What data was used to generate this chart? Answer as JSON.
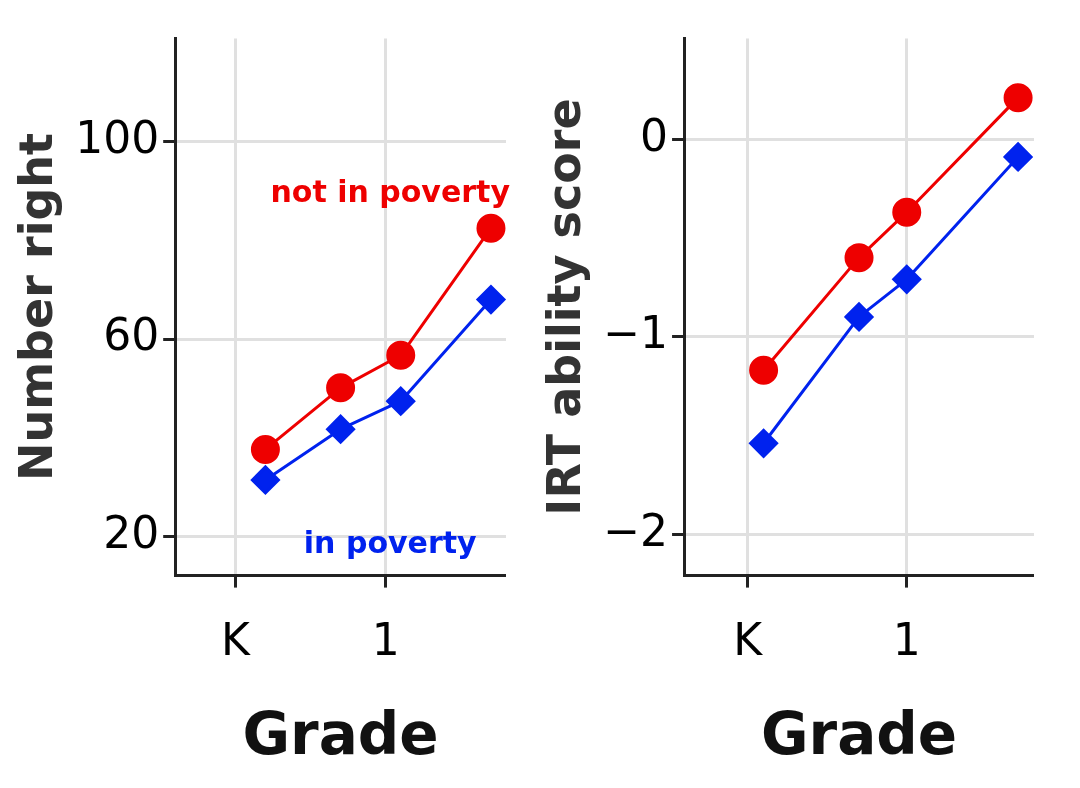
{
  "chart_data": [
    {
      "type": "line",
      "xlabel": "Grade",
      "ylabel": "Number right",
      "categories": [
        null,
        null,
        null,
        null,
        "K",
        null,
        null,
        null,
        null,
        null,
        null,
        null,
        null,
        null,
        "1",
        null,
        null,
        null,
        null,
        null,
        null,
        null,
        null
      ],
      "ylim": [
        12,
        121
      ],
      "yticks": [
        20,
        60,
        100
      ],
      "grid": true,
      "legend": false,
      "series": [
        {
          "name": "not in poverty",
          "color": "#ee0000",
          "marker": "circle",
          "values": [
            null,
            null,
            null,
            null,
            null,
            null,
            37.6,
            null,
            null,
            null,
            null,
            50.1,
            null,
            null,
            null,
            56.7,
            null,
            null,
            null,
            null,
            null,
            82.5,
            null
          ]
        },
        {
          "name": "in poverty",
          "color": "#0022ee",
          "marker": "diamond",
          "values": [
            null,
            null,
            null,
            null,
            null,
            null,
            31.4,
            null,
            null,
            null,
            null,
            41.7,
            null,
            null,
            null,
            47.4,
            null,
            null,
            null,
            null,
            null,
            68,
            null
          ]
        }
      ]
    },
    {
      "type": "line",
      "xlabel": "Grade",
      "ylabel": "IRT ability score",
      "categories": [
        null,
        null,
        null,
        null,
        "K",
        null,
        null,
        null,
        null,
        null,
        null,
        null,
        null,
        null,
        "1",
        null,
        null,
        null,
        null,
        null,
        null,
        null,
        null
      ],
      "ylim": [
        -2.21,
        0.51
      ],
      "yticks": [
        {
          "value": -2,
          "label": "−2"
        },
        {
          "value": -1,
          "label": "−1"
        },
        0
      ],
      "grid": true,
      "legend": false,
      "series": [
        {
          "color": "#ee0000",
          "marker": "circle",
          "values": [
            null,
            null,
            null,
            null,
            null,
            -1.17,
            null,
            null,
            null,
            null,
            null,
            -0.6,
            null,
            null,
            -0.37,
            null,
            null,
            null,
            null,
            null,
            null,
            0.21,
            null
          ]
        },
        {
          "color": "#0022ee",
          "marker": "diamond",
          "values": [
            null,
            null,
            null,
            null,
            null,
            -1.54,
            null,
            null,
            null,
            null,
            null,
            -0.9,
            null,
            null,
            -0.71,
            null,
            null,
            null,
            null,
            null,
            null,
            -0.09,
            null
          ]
        }
      ]
    }
  ]
}
